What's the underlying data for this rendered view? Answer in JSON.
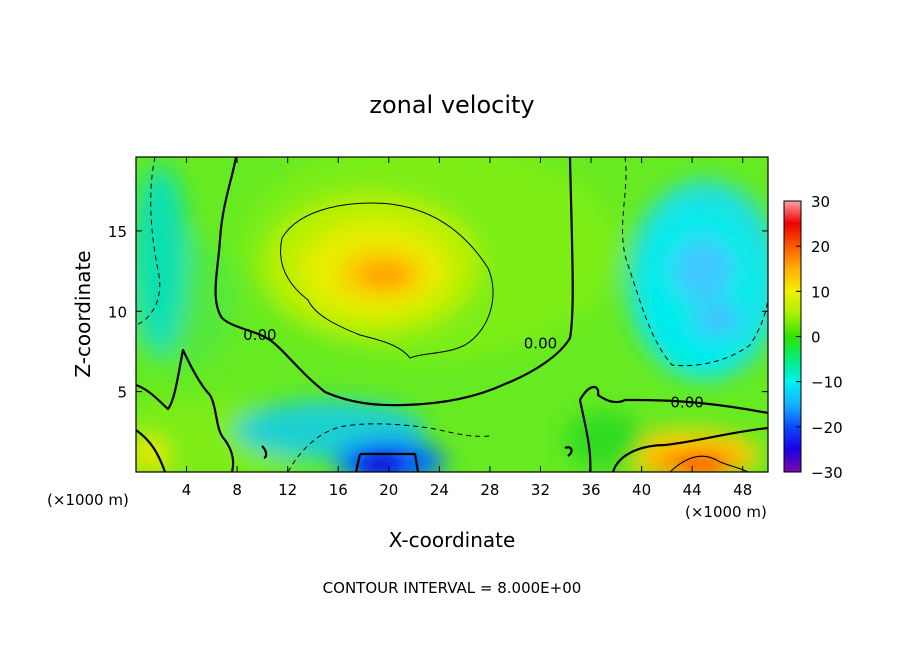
{
  "chart_data": {
    "type": "heatmap",
    "title": "zonal velocity",
    "xlabel": "X-coordinate",
    "ylabel": "Z-coordinate",
    "x_unit_left": "(×1000 m)",
    "x_unit_right": "(×1000 m)",
    "xlim": [
      0,
      50
    ],
    "ylim": [
      0,
      19.6
    ],
    "xticks": [
      {
        "value": 4,
        "label": "4"
      },
      {
        "value": 8,
        "label": "8"
      },
      {
        "value": 12,
        "label": "12"
      },
      {
        "value": 16,
        "label": "16"
      },
      {
        "value": 20,
        "label": "20"
      },
      {
        "value": 24,
        "label": "24"
      },
      {
        "value": 28,
        "label": "28"
      },
      {
        "value": 32,
        "label": "32"
      },
      {
        "value": 36,
        "label": "36"
      },
      {
        "value": 40,
        "label": "40"
      },
      {
        "value": 44,
        "label": "44"
      },
      {
        "value": 48,
        "label": "48"
      }
    ],
    "yticks": [
      {
        "value": 5,
        "label": "5"
      },
      {
        "value": 10,
        "label": "10"
      },
      {
        "value": 15,
        "label": "15"
      }
    ],
    "colorbar": {
      "range": [
        -30,
        30
      ],
      "ticks": [
        {
          "value": 30,
          "label": "30"
        },
        {
          "value": 20,
          "label": "20"
        },
        {
          "value": 10,
          "label": "10"
        },
        {
          "value": 0,
          "label": "0"
        },
        {
          "value": -10,
          "label": "−10"
        },
        {
          "value": -20,
          "label": "−20"
        },
        {
          "value": -30,
          "label": "−30"
        }
      ],
      "colors": [
        "#7a0aa5",
        "#1a00e6",
        "#0a4aff",
        "#14b4ff",
        "#00f0f0",
        "#00ee7a",
        "#30e400",
        "#a8f000",
        "#f2f000",
        "#ffb000",
        "#ff5a00",
        "#ee0000",
        "#ffa0a0"
      ]
    },
    "contour_labels": [
      {
        "text": "0.00",
        "x": 9.8,
        "z": 8.2
      },
      {
        "text": "0.00",
        "x": 32.0,
        "z": 7.7
      },
      {
        "text": "0.00",
        "x": 43.6,
        "z": 4.0
      }
    ],
    "features": [
      {
        "kind": "maximum",
        "x": 20.5,
        "z": 12.4,
        "value": 14
      },
      {
        "kind": "maximum",
        "x": 45.0,
        "z": 1.0,
        "value": 17
      },
      {
        "kind": "minimum",
        "x": 19.5,
        "z": 1.0,
        "value": -20
      },
      {
        "kind": "minimum",
        "x": 45.0,
        "z": 13.5,
        "value": -10
      }
    ],
    "contour_interval_text": "CONTOUR INTERVAL = 8.000E+00"
  }
}
